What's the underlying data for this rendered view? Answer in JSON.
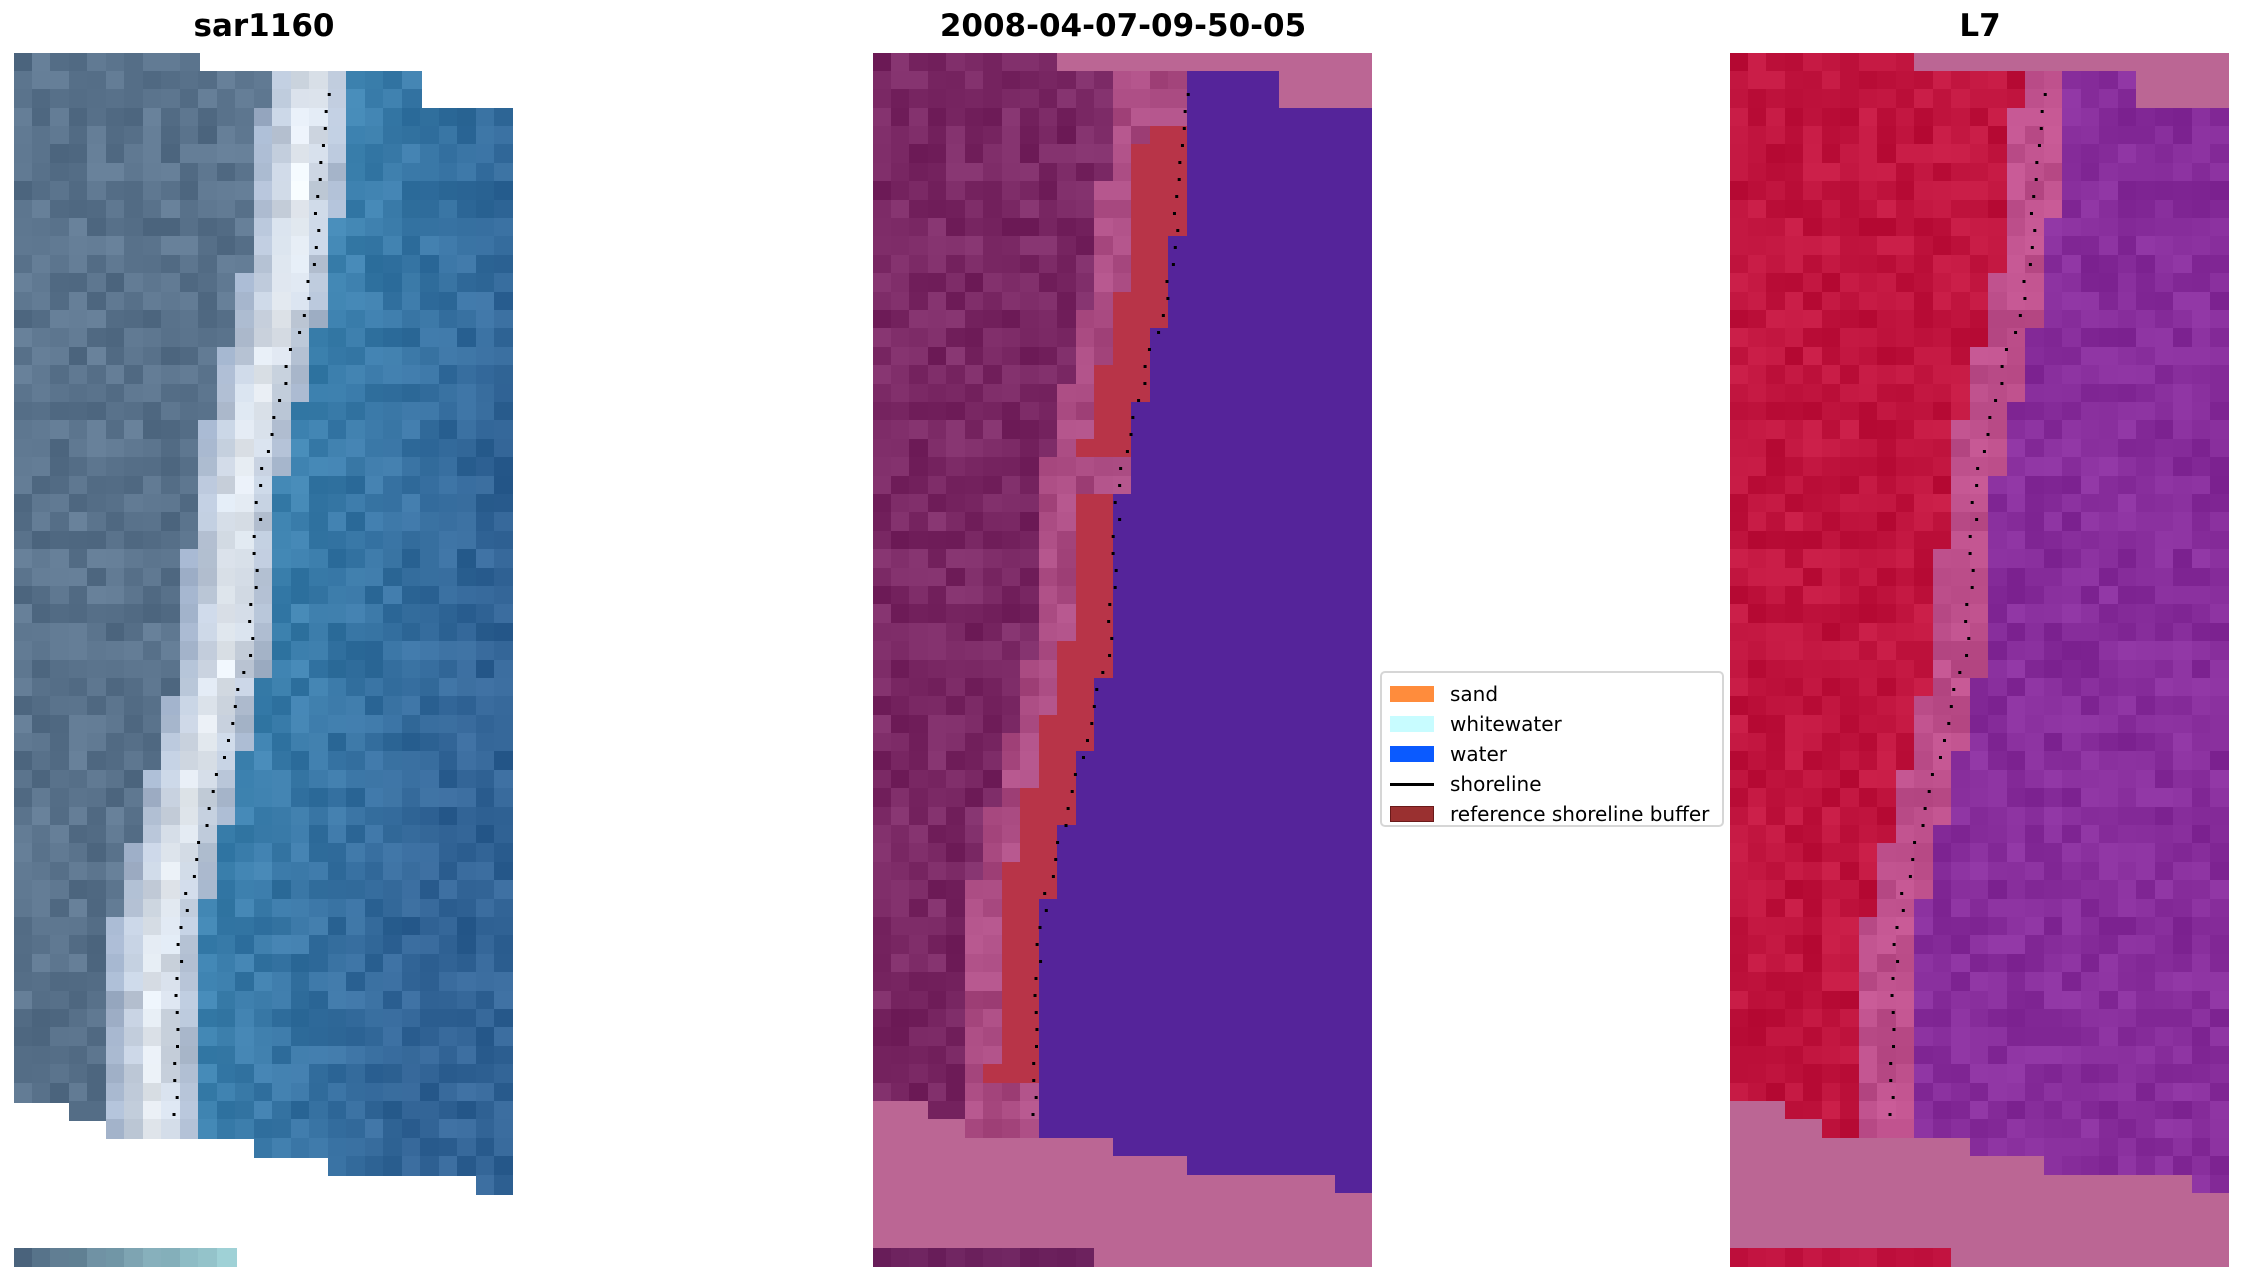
{
  "panels": [
    {
      "title": "sar1160"
    },
    {
      "title": "2008-04-07-09-50-05"
    },
    {
      "title": "L7"
    }
  ],
  "legend": {
    "items": [
      {
        "label": "sand",
        "color": "#ff8c3c"
      },
      {
        "label": "whitewater",
        "color": "#c8fcff"
      },
      {
        "label": "water",
        "color": "#0a5aff"
      },
      {
        "label": "shoreline",
        "color": "#000000"
      },
      {
        "label": "reference shoreline buffer",
        "color": "#9a3030"
      }
    ]
  }
}
